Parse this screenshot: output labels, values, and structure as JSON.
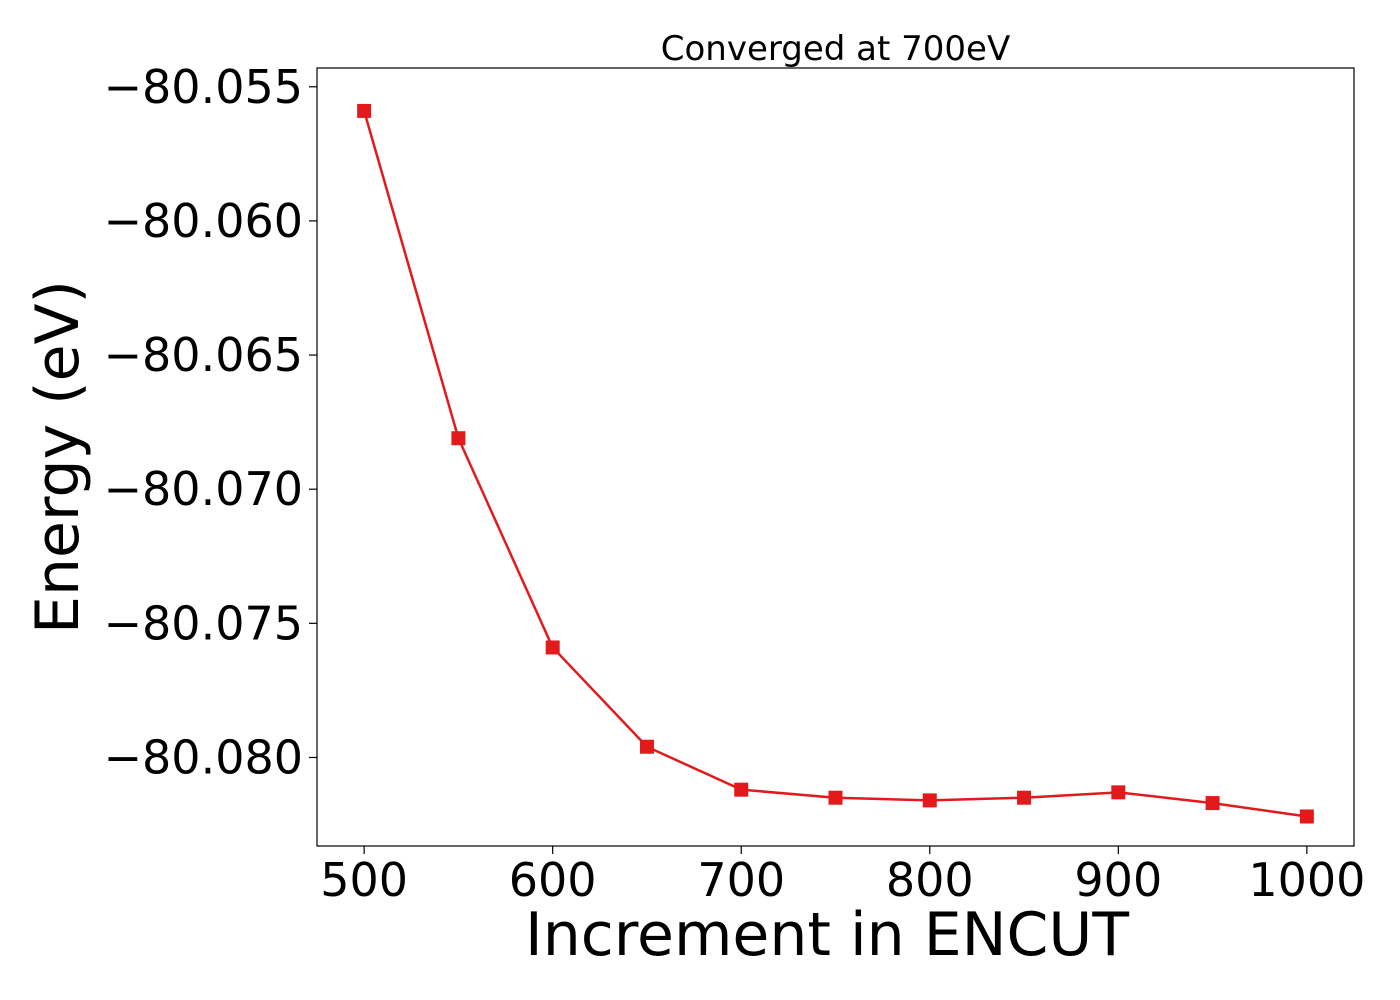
{
  "chart_data": {
    "type": "line",
    "title": "Converged at 700eV",
    "xlabel": "Increment in ENCUT",
    "ylabel": "Energy (eV)",
    "xlim": [
      475,
      1025
    ],
    "ylim": [
      -80.0833,
      -80.0543
    ],
    "x_ticks": [
      500,
      600,
      700,
      800,
      900,
      1000
    ],
    "x_tick_labels": [
      "500",
      "600",
      "700",
      "800",
      "900",
      "1000"
    ],
    "y_ticks": [
      -80.055,
      -80.06,
      -80.065,
      -80.07,
      -80.075,
      -80.08
    ],
    "y_tick_labels": [
      "−80.055",
      "−80.060",
      "−80.065",
      "−80.070",
      "−80.075",
      "−80.080"
    ],
    "grid": false,
    "series": [
      {
        "color": "#e31a1c",
        "marker": "square",
        "x": [
          500,
          550,
          600,
          650,
          700,
          750,
          800,
          850,
          900,
          950,
          1000
        ],
        "y": [
          -80.0559,
          -80.0681,
          -80.0759,
          -80.0796,
          -80.0812,
          -80.0815,
          -80.0816,
          -80.0815,
          -80.0813,
          -80.0817,
          -80.0822
        ]
      }
    ]
  }
}
